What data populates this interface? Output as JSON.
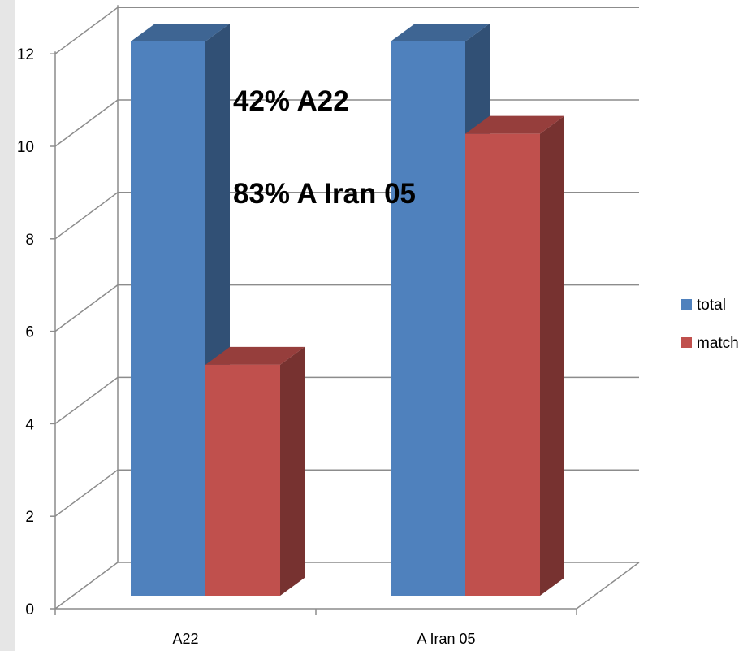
{
  "chart_data": {
    "type": "bar",
    "categories": [
      "A22",
      "A Iran 05"
    ],
    "series": [
      {
        "name": "total",
        "values": [
          12,
          12
        ],
        "color": "#4f81bd"
      },
      {
        "name": "match",
        "values": [
          5,
          10
        ],
        "color": "#c0504d"
      }
    ],
    "title": "",
    "xlabel": "",
    "ylabel": "",
    "ylim": [
      0,
      12
    ],
    "yticks": [
      0,
      2,
      4,
      6,
      8,
      10,
      12
    ],
    "grid": true,
    "legend": "right",
    "annotations": [
      "42% A22",
      "83% A Iran 05"
    ]
  }
}
